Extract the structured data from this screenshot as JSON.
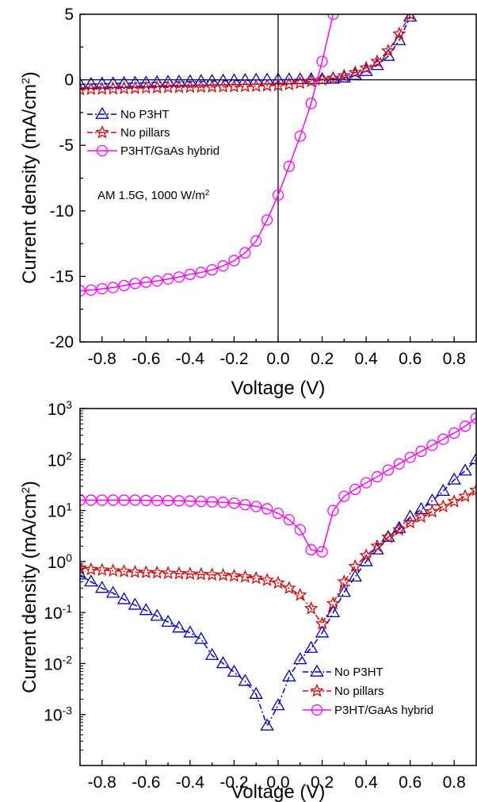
{
  "chart_data": [
    {
      "type": "line",
      "xlabel": "Voltage (V)",
      "ylabel": "Current density (mA/cm",
      "ylabel_sup": "2",
      "ylabel_close": ")",
      "xlim": [
        -0.9,
        0.9
      ],
      "ylim": [
        -20,
        5
      ],
      "xticks": [
        -0.8,
        -0.6,
        -0.4,
        -0.2,
        0.0,
        0.2,
        0.4,
        0.6,
        0.8
      ],
      "xtick_labels": [
        "-0.8",
        "-0.6",
        "-0.4",
        "-0.2",
        "0.0",
        "0.2",
        "0.4",
        "0.6",
        "0.8"
      ],
      "yticks": [
        -20,
        -15,
        -10,
        -5,
        0,
        5
      ],
      "ytick_labels": [
        "-20",
        "-15",
        "-10",
        "-5",
        "0",
        "5"
      ],
      "scale": "linear",
      "grid": false,
      "zero_lines": true,
      "legend_position": "top-left",
      "annotation": "AM 1.5G, 1000 W/m",
      "annotation_sup": "2",
      "series": [
        {
          "name": "No P3HT",
          "color": "#0000cc",
          "marker": "triangle",
          "line": "dash-dot",
          "x": [
            -0.9,
            -0.85,
            -0.8,
            -0.75,
            -0.7,
            -0.65,
            -0.6,
            -0.55,
            -0.5,
            -0.45,
            -0.4,
            -0.35,
            -0.3,
            -0.25,
            -0.2,
            -0.15,
            -0.1,
            -0.05,
            0.0,
            0.05,
            0.1,
            0.15,
            0.2,
            0.25,
            0.3,
            0.35,
            0.4,
            0.45,
            0.5,
            0.55,
            0.6
          ],
          "y": [
            -0.35,
            -0.33,
            -0.31,
            -0.29,
            -0.27,
            -0.25,
            -0.23,
            -0.2,
            -0.18,
            -0.16,
            -0.14,
            -0.12,
            -0.1,
            -0.08,
            -0.06,
            -0.04,
            -0.02,
            -0.01,
            0.0,
            0.01,
            0.02,
            0.03,
            0.04,
            0.06,
            0.15,
            0.35,
            0.65,
            1.1,
            1.8,
            3.0,
            4.8
          ]
        },
        {
          "name": "No pillars",
          "color": "#dd0000",
          "marker": "star",
          "line": "dash-dot",
          "x": [
            -0.9,
            -0.85,
            -0.8,
            -0.75,
            -0.7,
            -0.65,
            -0.6,
            -0.55,
            -0.5,
            -0.45,
            -0.4,
            -0.35,
            -0.3,
            -0.25,
            -0.2,
            -0.15,
            -0.1,
            -0.05,
            0.0,
            0.05,
            0.1,
            0.15,
            0.2,
            0.25,
            0.3,
            0.35,
            0.4,
            0.45,
            0.5,
            0.55,
            0.6
          ],
          "y": [
            -0.75,
            -0.72,
            -0.7,
            -0.68,
            -0.66,
            -0.64,
            -0.62,
            -0.6,
            -0.58,
            -0.57,
            -0.56,
            -0.55,
            -0.54,
            -0.53,
            -0.52,
            -0.5,
            -0.48,
            -0.45,
            -0.42,
            -0.35,
            -0.25,
            -0.12,
            0.0,
            0.12,
            0.3,
            0.55,
            0.9,
            1.4,
            2.2,
            3.5,
            5.0
          ]
        },
        {
          "name": "P3HT/GaAs hybrid",
          "color": "#ff00ff",
          "marker": "circle",
          "line": "solid",
          "x": [
            -0.9,
            -0.85,
            -0.8,
            -0.75,
            -0.7,
            -0.65,
            -0.6,
            -0.55,
            -0.5,
            -0.45,
            -0.4,
            -0.35,
            -0.3,
            -0.25,
            -0.2,
            -0.15,
            -0.1,
            -0.05,
            0.0,
            0.05,
            0.1,
            0.15,
            0.2,
            0.25
          ],
          "y": [
            -16.1,
            -16.05,
            -15.95,
            -15.85,
            -15.7,
            -15.55,
            -15.45,
            -15.35,
            -15.2,
            -15.05,
            -14.85,
            -14.7,
            -14.5,
            -14.2,
            -13.8,
            -13.2,
            -12.3,
            -10.7,
            -8.8,
            -6.6,
            -4.3,
            -1.8,
            1.4,
            5.0
          ]
        }
      ]
    },
    {
      "type": "line",
      "xlabel": "Voltage (V)",
      "ylabel": "Current density (mA/cm",
      "ylabel_sup": "2",
      "ylabel_close": ")",
      "xlim": [
        -0.9,
        0.9
      ],
      "ylim": [
        0.0001,
        1000
      ],
      "xticks": [
        -0.8,
        -0.6,
        -0.4,
        -0.2,
        0.0,
        0.2,
        0.4,
        0.6,
        0.8
      ],
      "xtick_labels": [
        "-0.8",
        "-0.6",
        "-0.4",
        "-0.2",
        "0.0",
        "0.2",
        "0.4",
        "0.6",
        "0.8"
      ],
      "yticks": [
        0.001,
        0.01,
        0.1,
        1,
        10,
        100,
        1000
      ],
      "ytick_base": "10",
      "ytick_exps": [
        "-3",
        "-2",
        "-1",
        "0",
        "1",
        "2",
        "3"
      ],
      "scale": "log",
      "grid": false,
      "legend_position": "bottom-right",
      "series": [
        {
          "name": "No P3HT",
          "color": "#0000cc",
          "marker": "triangle",
          "line": "dash-dot",
          "x": [
            -0.9,
            -0.85,
            -0.8,
            -0.75,
            -0.7,
            -0.65,
            -0.6,
            -0.55,
            -0.5,
            -0.45,
            -0.4,
            -0.35,
            -0.3,
            -0.25,
            -0.2,
            -0.15,
            -0.1,
            -0.05,
            0.0,
            0.05,
            0.1,
            0.15,
            0.2,
            0.25,
            0.3,
            0.35,
            0.4,
            0.45,
            0.5,
            0.55,
            0.6,
            0.65,
            0.7,
            0.75,
            0.8,
            0.85,
            0.9
          ],
          "y": [
            0.55,
            0.4,
            0.3,
            0.24,
            0.18,
            0.14,
            0.11,
            0.085,
            0.065,
            0.05,
            0.04,
            0.03,
            0.0145,
            0.01,
            0.0068,
            0.0045,
            0.0025,
            0.0006,
            0.0015,
            0.0055,
            0.012,
            0.02,
            0.04,
            0.1,
            0.25,
            0.5,
            1.0,
            1.7,
            3.0,
            4.5,
            7.5,
            10.5,
            15.5,
            24,
            40,
            60,
            100
          ]
        },
        {
          "name": "No pillars",
          "color": "#dd0000",
          "marker": "star",
          "line": "dash-dot",
          "x": [
            -0.9,
            -0.85,
            -0.8,
            -0.75,
            -0.7,
            -0.65,
            -0.6,
            -0.55,
            -0.5,
            -0.45,
            -0.4,
            -0.35,
            -0.3,
            -0.25,
            -0.2,
            -0.15,
            -0.1,
            -0.05,
            0.0,
            0.05,
            0.1,
            0.15,
            0.2,
            0.25,
            0.3,
            0.35,
            0.4,
            0.45,
            0.5,
            0.55,
            0.6,
            0.65,
            0.7,
            0.75,
            0.8,
            0.85,
            0.9
          ],
          "y": [
            0.75,
            0.7,
            0.68,
            0.66,
            0.64,
            0.62,
            0.61,
            0.6,
            0.59,
            0.58,
            0.57,
            0.56,
            0.55,
            0.54,
            0.52,
            0.5,
            0.47,
            0.43,
            0.38,
            0.3,
            0.22,
            0.12,
            0.06,
            0.15,
            0.4,
            0.8,
            1.3,
            2.0,
            3.0,
            4.2,
            5.8,
            7.5,
            9.5,
            12,
            15,
            19,
            25
          ]
        },
        {
          "name": "P3HT/GaAs hybrid",
          "color": "#ff00ff",
          "marker": "circle",
          "line": "solid",
          "x": [
            -0.9,
            -0.85,
            -0.8,
            -0.75,
            -0.7,
            -0.65,
            -0.6,
            -0.55,
            -0.5,
            -0.45,
            -0.4,
            -0.35,
            -0.3,
            -0.25,
            -0.2,
            -0.15,
            -0.1,
            -0.05,
            0.0,
            0.05,
            0.1,
            0.15,
            0.2,
            0.25,
            0.3,
            0.35,
            0.4,
            0.45,
            0.5,
            0.55,
            0.6,
            0.65,
            0.7,
            0.75,
            0.8,
            0.85,
            0.9
          ],
          "y": [
            16,
            16,
            16,
            16,
            16,
            16,
            15.8,
            15.7,
            15.6,
            15.5,
            15.3,
            15.1,
            14.8,
            14.5,
            14,
            13,
            12,
            10.8,
            8.8,
            6.6,
            4.2,
            1.7,
            1.55,
            10,
            19,
            26,
            35,
            46,
            62,
            82,
            110,
            145,
            190,
            250,
            330,
            450,
            650
          ]
        }
      ]
    }
  ]
}
